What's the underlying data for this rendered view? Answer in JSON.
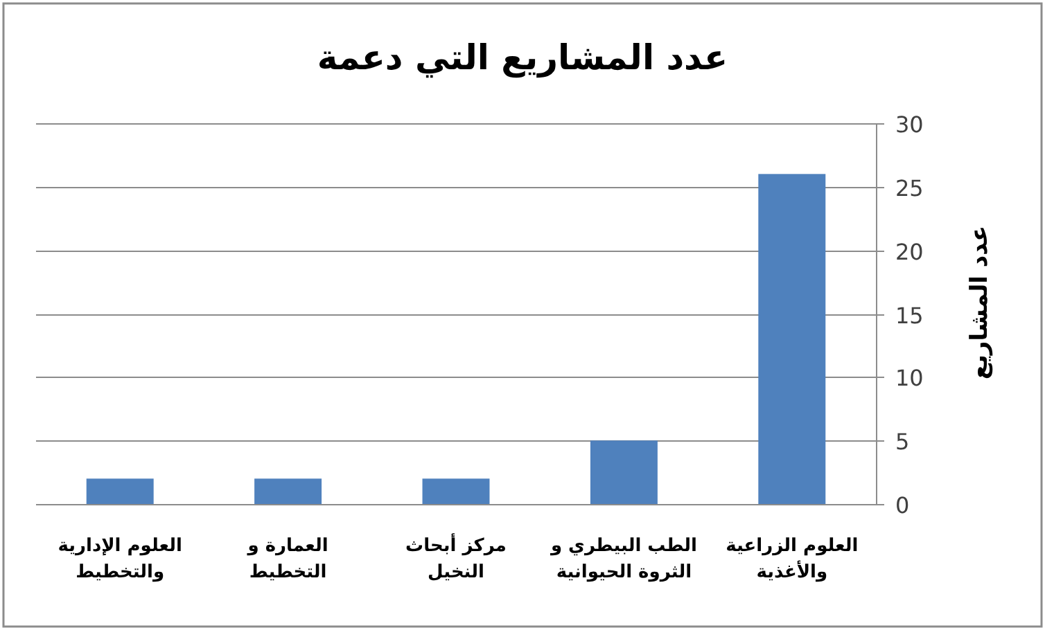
{
  "chart_data": {
    "type": "bar",
    "title": "عدد المشاريع التي دعمة",
    "ylabel": "عدد المشاريع",
    "categories": [
      "العلوم الإدارية والتخطيط",
      "العمارة و التخطيط",
      "مركز أبحاث النخيل",
      "الطب البيطري و الثروة الحيوانية",
      "العلوم الزراعية والأغذية"
    ],
    "values": [
      2,
      2,
      2,
      5,
      26
    ],
    "color": "#4f81bd",
    "ylim": [
      0,
      30
    ],
    "yticks": [
      0,
      5,
      10,
      15,
      20,
      25,
      30
    ],
    "grid": "y"
  }
}
